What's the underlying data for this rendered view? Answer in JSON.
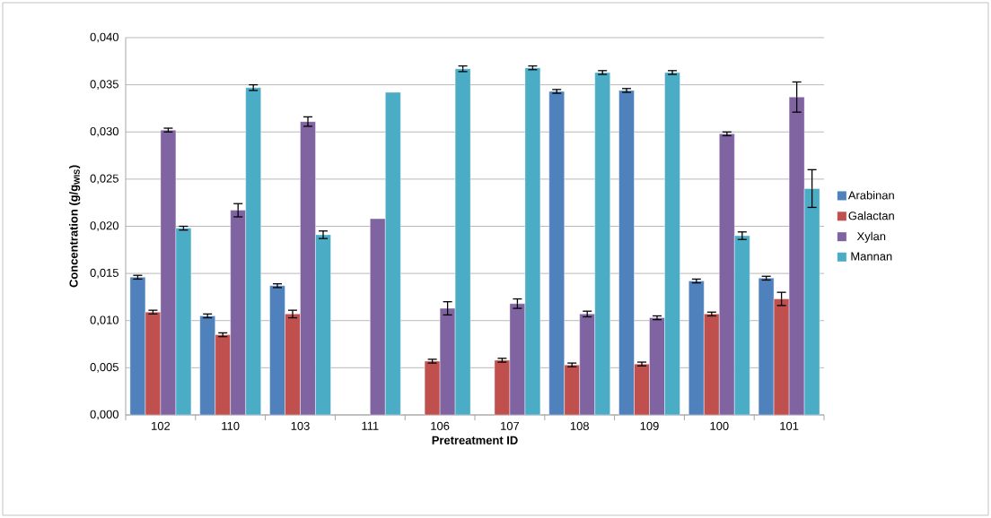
{
  "chart_data": {
    "type": "bar",
    "xlabel": "Pretreatment ID",
    "ylabel": "Concentration (g/g$_{WIS}$)",
    "categories": [
      "102",
      "110",
      "103",
      "111",
      "106",
      "107",
      "108",
      "109",
      "100",
      "101"
    ],
    "series": [
      {
        "name": "Arabinan",
        "color": "#4f81bd",
        "values": [
          0.0146,
          0.0105,
          0.0137,
          null,
          null,
          null,
          0.0343,
          0.0344,
          0.0142,
          0.0145
        ],
        "errors": [
          0.0002,
          0.0002,
          0.0002,
          null,
          null,
          null,
          0.0002,
          0.0002,
          0.0002,
          0.0002
        ]
      },
      {
        "name": "Galactan",
        "color": "#c0504d",
        "values": [
          0.0109,
          0.0085,
          0.0107,
          null,
          0.0057,
          0.0058,
          0.0053,
          0.0054,
          0.0107,
          0.0123
        ],
        "errors": [
          0.0002,
          0.0002,
          0.0004,
          null,
          0.0002,
          0.0002,
          0.0002,
          0.0002,
          0.0002,
          0.0007
        ]
      },
      {
        "name": "Xylan",
        "color": "#8064a2",
        "values": [
          0.0302,
          0.0217,
          0.0311,
          0.0208,
          0.0113,
          0.0118,
          0.0107,
          0.0103,
          0.0298,
          0.0337
        ],
        "errors": [
          0.0002,
          0.0007,
          0.0005,
          null,
          0.0007,
          0.0005,
          0.0003,
          0.0002,
          0.0002,
          0.0016
        ]
      },
      {
        "name": "Mannan",
        "color": "#4bacc6",
        "values": [
          0.0198,
          0.0347,
          0.0191,
          0.0342,
          0.0367,
          0.0368,
          0.0363,
          0.0363,
          0.019,
          0.024
        ],
        "errors": [
          0.0002,
          0.0003,
          0.0004,
          null,
          0.0003,
          0.0002,
          0.0002,
          0.0002,
          0.0004,
          0.002
        ]
      }
    ],
    "ylim": [
      0,
      0.04
    ],
    "yticks": [
      {
        "value": 0,
        "label": "0,000"
      },
      {
        "value": 0.005,
        "label": "0,005"
      },
      {
        "value": 0.01,
        "label": "0,010"
      },
      {
        "value": 0.015,
        "label": "0,015"
      },
      {
        "value": 0.02,
        "label": "0,020"
      },
      {
        "value": 0.025,
        "label": "0,025"
      },
      {
        "value": 0.03,
        "label": "0,030"
      },
      {
        "value": 0.035,
        "label": "0,035"
      },
      {
        "value": 0.04,
        "label": "0,040"
      }
    ],
    "grid": "y",
    "legend": "right"
  }
}
